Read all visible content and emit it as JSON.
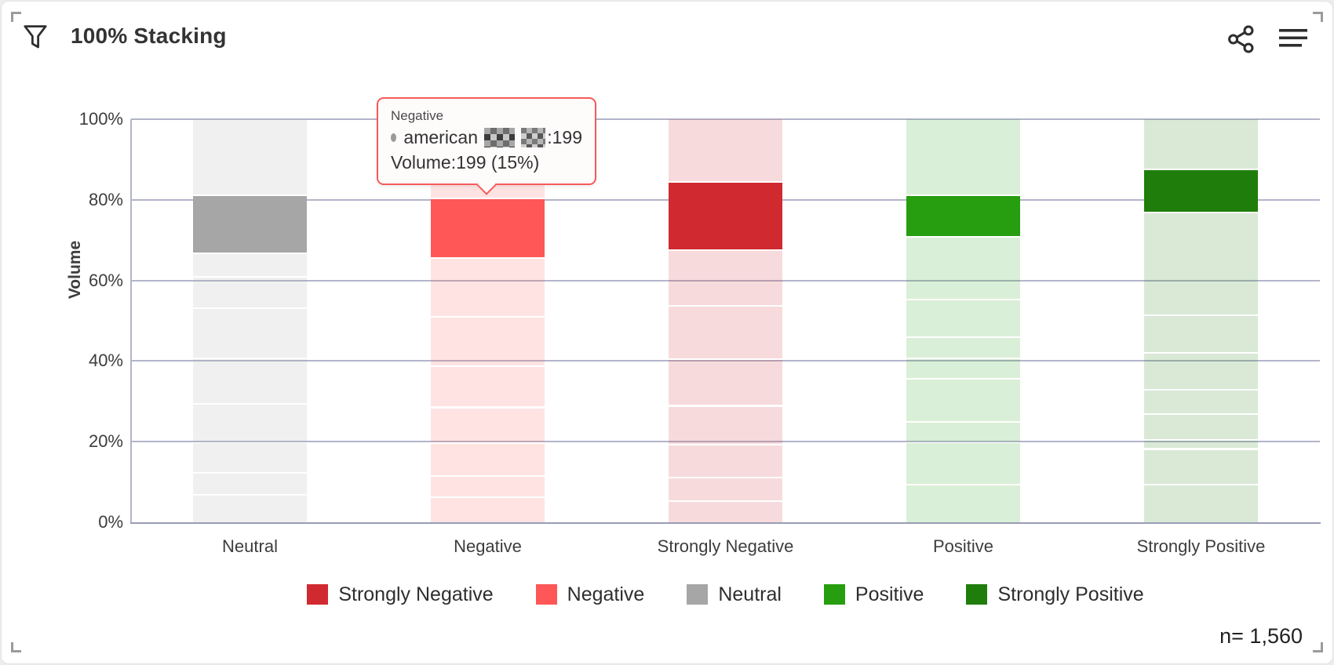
{
  "header": {
    "title": "100% Stacking",
    "icons": [
      "filter-funnel-icon",
      "share-icon",
      "menu-icon"
    ]
  },
  "footer": {
    "sample_size_label": "n= 1,560"
  },
  "tooltip": {
    "header": "Negative",
    "series_prefix": "american",
    "series_redacted": true,
    "series_suffix": ":199",
    "volume_line": "Volume:199 (15%)"
  },
  "legend": [
    {
      "label": "Strongly Negative",
      "color": "#d02a30"
    },
    {
      "label": "Negative",
      "color": "#ff5757"
    },
    {
      "label": "Neutral",
      "color": "#a6a6a6"
    },
    {
      "label": "Positive",
      "color": "#269e0f"
    },
    {
      "label": "Strongly Positive",
      "color": "#1f7e0b"
    }
  ],
  "chart_data": {
    "type": "bar",
    "subtype": "100%-stacked-vertical",
    "title": "100% Stacking",
    "xlabel": "",
    "ylabel": "Volume",
    "ylim": [
      0,
      100
    ],
    "y_ticks": [
      "0%",
      "20%",
      "40%",
      "60%",
      "80%",
      "100%"
    ],
    "grid": true,
    "legend_position": "bottom",
    "categories": [
      "Neutral",
      "Negative",
      "Strongly Negative",
      "Positive",
      "Strongly Positive"
    ],
    "highlighted_series": {
      "name": "american (redacted)",
      "volume": 199,
      "share_pct": 15,
      "category": "Negative"
    },
    "total_n": 1560,
    "bars": [
      {
        "category": "Neutral",
        "color": "#a6a6a6",
        "segments_pct_top_to_bottom": [
          19.0,
          14.5,
          5.8,
          7.8,
          12.5,
          11.3,
          9.4,
          7.6,
          5.5,
          6.6
        ],
        "highlighted_index": 1
      },
      {
        "category": "Negative",
        "color": "#ff5757",
        "segments_pct_top_to_bottom": [
          19.8,
          14.8,
          14.6,
          12.3,
          10.2,
          8.8,
          8.2,
          5.2,
          6.1
        ],
        "highlighted_index": 1
      },
      {
        "category": "Strongly Negative",
        "color": "#d02a30",
        "segments_pct_top_to_bottom": [
          15.8,
          16.8,
          13.9,
          13.3,
          11.5,
          9.7,
          8.1,
          5.8,
          5.1
        ],
        "highlighted_index": 1
      },
      {
        "category": "Positive",
        "color": "#269e0f",
        "segments_pct_top_to_bottom": [
          19.0,
          10.3,
          15.6,
          9.4,
          5.3,
          5.0,
          10.6,
          5.1,
          10.5,
          9.2
        ],
        "highlighted_index": 1
      },
      {
        "category": "Strongly Positive",
        "color": "#1f7e0b",
        "segments_pct_top_to_bottom": [
          12.7,
          10.7,
          25.4,
          9.4,
          9.2,
          6.0,
          6.3,
          2.3,
          8.8,
          9.2
        ],
        "highlighted_index": 1
      }
    ]
  }
}
